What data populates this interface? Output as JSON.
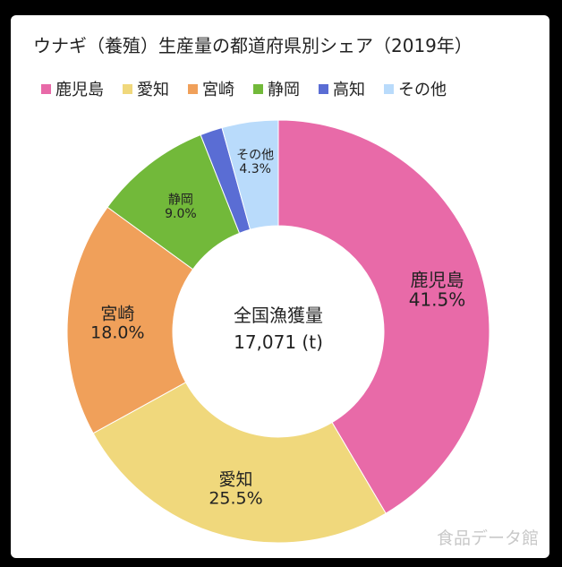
{
  "chart_data": {
    "type": "pie",
    "title": "ウナギ（養殖）生産量の都道府県別シェア（2019年）",
    "center_label": "全国漁獲量",
    "center_value": "17,071 (t)",
    "slices": [
      {
        "label": "鹿児島",
        "value": 41.5,
        "display": "41.5%",
        "color": "#e86aa8"
      },
      {
        "label": "愛知",
        "value": 25.5,
        "display": "25.5%",
        "color": "#f0d87c"
      },
      {
        "label": "宮崎",
        "value": 18.0,
        "display": "18.0%",
        "color": "#f0a05a"
      },
      {
        "label": "静岡",
        "value": 9.0,
        "display": "9.0%",
        "color": "#72b93a"
      },
      {
        "label": "高知",
        "value": 1.7,
        "display": "",
        "color": "#5a6dd4"
      },
      {
        "label": "その他",
        "value": 4.3,
        "display": "4.3%",
        "color": "#b9dbfb"
      }
    ],
    "legend_position": "top"
  },
  "watermark": "食品データ館"
}
